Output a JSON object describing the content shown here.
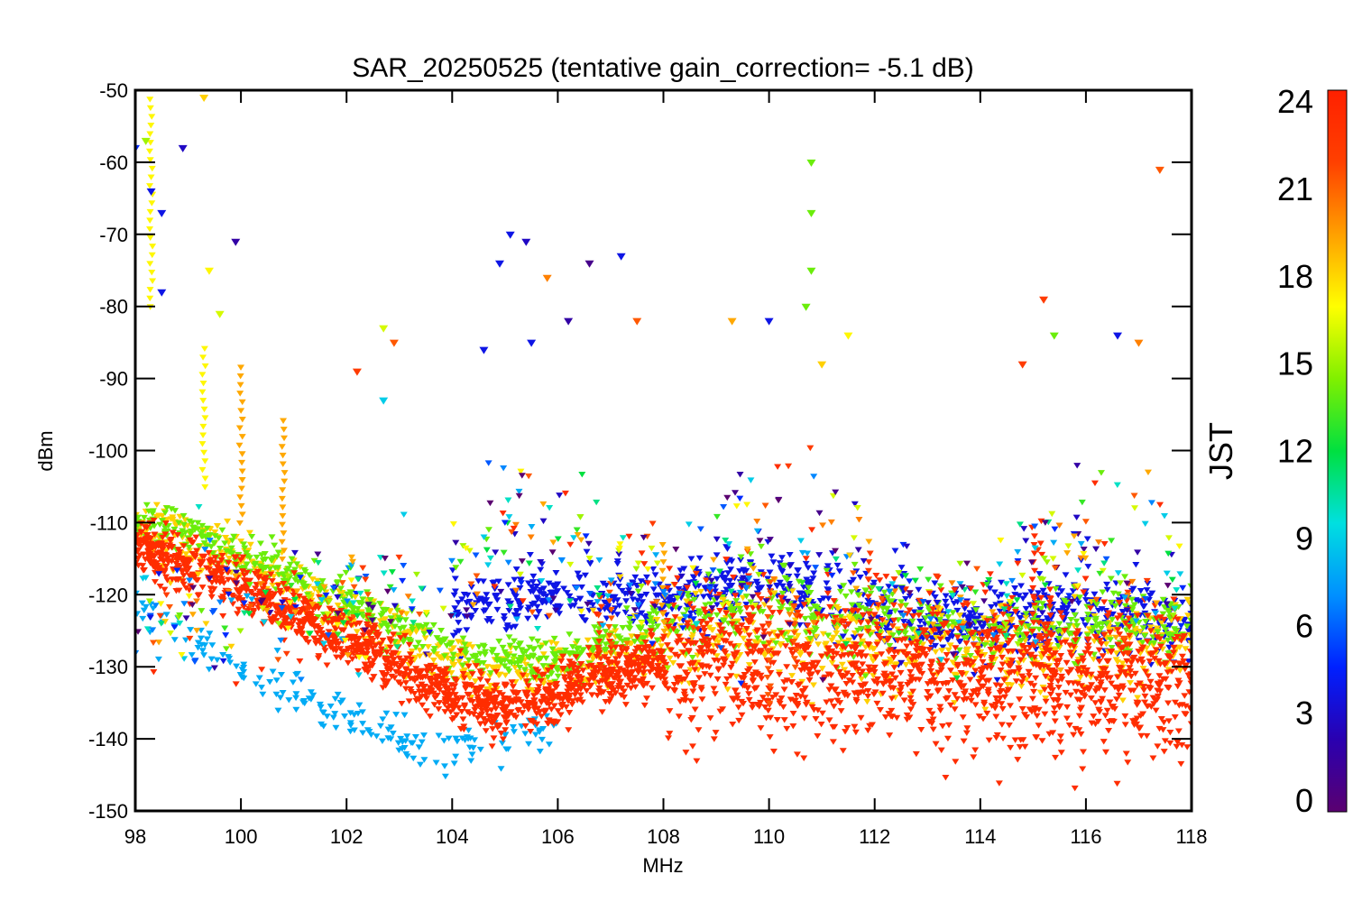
{
  "chart_data": {
    "type": "scatter",
    "title": "SAR_20250525 (tentative gain_correction= -5.1 dB)",
    "xlabel": "MHz",
    "ylabel": "dBm",
    "xlim": [
      98,
      118
    ],
    "ylim": [
      -150,
      -50
    ],
    "xticks": [
      "98",
      "100",
      "102",
      "104",
      "106",
      "108",
      "110",
      "112",
      "114",
      "116",
      "118"
    ],
    "yticks": [
      "-50",
      "-60",
      "-70",
      "-80",
      "-90",
      "-100",
      "-110",
      "-120",
      "-130",
      "-140",
      "-150"
    ],
    "grid": false,
    "marker": "downward triangle / star",
    "colorbar": {
      "label": "JST",
      "range": [
        0,
        24
      ],
      "ticks": [
        "0",
        "3",
        "6",
        "9",
        "12",
        "15",
        "18",
        "21",
        "24"
      ],
      "colormap": [
        "#5a0070",
        "#2a00b0",
        "#0020ff",
        "#0090ff",
        "#00e0e0",
        "#00e040",
        "#80f000",
        "#ffff00",
        "#ffa000",
        "#ff4000",
        "#ff2000"
      ]
    },
    "noise_floor_by_hour": [
      {
        "hour": 23,
        "x": [
          98,
          100,
          102,
          104,
          105,
          106,
          107,
          108,
          118
        ],
        "y": [
          -113,
          -119,
          -126,
          -134,
          -136,
          -134,
          -131,
          -129,
          -132
        ],
        "spread_below_108": 4,
        "spread_above_108": 10
      },
      {
        "hour": 18,
        "x": [
          98,
          100,
          102,
          104,
          106,
          108,
          110,
          112,
          114,
          116,
          118
        ],
        "y": [
          -110,
          -115,
          -122,
          -130,
          -131,
          -126,
          -126,
          -127,
          -128,
          -128,
          -127
        ],
        "spread_below_108": 4,
        "spread_above_108": 6
      },
      {
        "hour": 14,
        "x": [
          98,
          100,
          102,
          104,
          106,
          108,
          110,
          112,
          114,
          116,
          118
        ],
        "y": [
          -109,
          -114,
          -121,
          -128,
          -129,
          -124,
          -122,
          -123,
          -125,
          -124,
          -124
        ],
        "spread_below_108": 3,
        "spread_above_108": 5
      },
      {
        "hour": 4,
        "x": [
          104,
          106,
          108,
          110,
          112,
          114,
          116,
          118
        ],
        "y": [
          -122,
          -120,
          -121,
          -118,
          -122,
          -124,
          -122,
          -124
        ],
        "spread_below_108": 4,
        "spread_above_108": 5
      },
      {
        "hour": 8,
        "x": [
          98,
          99,
          100,
          101,
          102,
          103,
          104,
          105,
          106
        ],
        "y": [
          -121,
          -126,
          -131,
          -134,
          -137,
          -140,
          -142,
          -140,
          -138
        ],
        "spread_below_108": 3,
        "spread_above_108": 3
      }
    ],
    "spikes": [
      {
        "x": 98.3,
        "hour": 17,
        "y": [
          -51,
          -80
        ]
      },
      {
        "x": 99.3,
        "hour": 17,
        "y": [
          -85,
          -105
        ]
      },
      {
        "x": 100.0,
        "hour": 19,
        "y": [
          -88,
          -110
        ]
      },
      {
        "x": 100.8,
        "hour": 19,
        "y": [
          -95,
          -115
        ]
      },
      {
        "x": 102.4,
        "hour": 23,
        "y": [
          -122,
          -130
        ]
      },
      {
        "x": 106.8,
        "hour": 22,
        "y": [
          -120,
          -130
        ]
      },
      {
        "x": 107.0,
        "hour": 21,
        "y": [
          -118,
          -128
        ]
      },
      {
        "x": 108.0,
        "hour": 19,
        "y": [
          -112,
          -125
        ]
      },
      {
        "x": 110.0,
        "hour": 21,
        "y": [
          -118,
          -135
        ]
      },
      {
        "x": 110.5,
        "hour": 21,
        "y": [
          -120,
          -130
        ]
      },
      {
        "x": 111.9,
        "hour": 22,
        "y": [
          -113,
          -125
        ]
      },
      {
        "x": 115.0,
        "hour": 23,
        "y": [
          -110,
          -125
        ]
      },
      {
        "x": 115.3,
        "hour": 23,
        "y": [
          -118,
          -130
        ]
      },
      {
        "x": 116.8,
        "hour": 22,
        "y": [
          -118,
          -128
        ]
      }
    ],
    "outliers": [
      {
        "x": 98.2,
        "y": -57,
        "hour": 15
      },
      {
        "x": 98.0,
        "y": -58,
        "hour": 5
      },
      {
        "x": 98.3,
        "y": -64,
        "hour": 4
      },
      {
        "x": 98.5,
        "y": -67,
        "hour": 4
      },
      {
        "x": 98.5,
        "y": -78,
        "hour": 4
      },
      {
        "x": 98.9,
        "y": -58,
        "hour": 3
      },
      {
        "x": 99.3,
        "y": -51,
        "hour": 18
      },
      {
        "x": 99.4,
        "y": -75,
        "hour": 17
      },
      {
        "x": 99.9,
        "y": -71,
        "hour": 2
      },
      {
        "x": 99.6,
        "y": -81,
        "hour": 16
      },
      {
        "x": 102.2,
        "y": -89,
        "hour": 22
      },
      {
        "x": 102.7,
        "y": -83,
        "hour": 16
      },
      {
        "x": 102.9,
        "y": -85,
        "hour": 21
      },
      {
        "x": 102.7,
        "y": -93,
        "hour": 9
      },
      {
        "x": 104.6,
        "y": -86,
        "hour": 4
      },
      {
        "x": 105.1,
        "y": -70,
        "hour": 4
      },
      {
        "x": 105.4,
        "y": -71,
        "hour": 3
      },
      {
        "x": 104.9,
        "y": -74,
        "hour": 4
      },
      {
        "x": 105.8,
        "y": -76,
        "hour": 20
      },
      {
        "x": 105.5,
        "y": -85,
        "hour": 4
      },
      {
        "x": 106.2,
        "y": -82,
        "hour": 2
      },
      {
        "x": 106.6,
        "y": -74,
        "hour": 1
      },
      {
        "x": 107.2,
        "y": -73,
        "hour": 4
      },
      {
        "x": 107.5,
        "y": -82,
        "hour": 21
      },
      {
        "x": 109.3,
        "y": -82,
        "hour": 19
      },
      {
        "x": 110.8,
        "y": -60,
        "hour": 14
      },
      {
        "x": 110.8,
        "y": -67,
        "hour": 14
      },
      {
        "x": 110.8,
        "y": -75,
        "hour": 14
      },
      {
        "x": 110.7,
        "y": -80,
        "hour": 14
      },
      {
        "x": 110.0,
        "y": -82,
        "hour": 4
      },
      {
        "x": 111.0,
        "y": -88,
        "hour": 18
      },
      {
        "x": 111.5,
        "y": -84,
        "hour": 17
      },
      {
        "x": 115.2,
        "y": -79,
        "hour": 22
      },
      {
        "x": 115.4,
        "y": -84,
        "hour": 14
      },
      {
        "x": 116.6,
        "y": -84,
        "hour": 4
      },
      {
        "x": 117.4,
        "y": -61,
        "hour": 21
      },
      {
        "x": 117.0,
        "y": -85,
        "hour": 20
      },
      {
        "x": 114.8,
        "y": -88,
        "hour": 22
      }
    ]
  }
}
